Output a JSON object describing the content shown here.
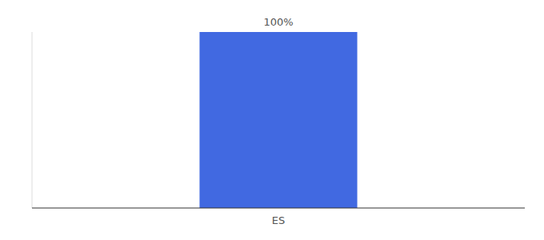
{
  "chart_data": {
    "type": "bar",
    "categories": [
      "ES"
    ],
    "values": [
      100
    ],
    "value_labels": [
      "100%"
    ],
    "data_labels": true,
    "color": "#4169e1",
    "ylim": [
      0,
      100
    ],
    "tick_labels": "x"
  }
}
